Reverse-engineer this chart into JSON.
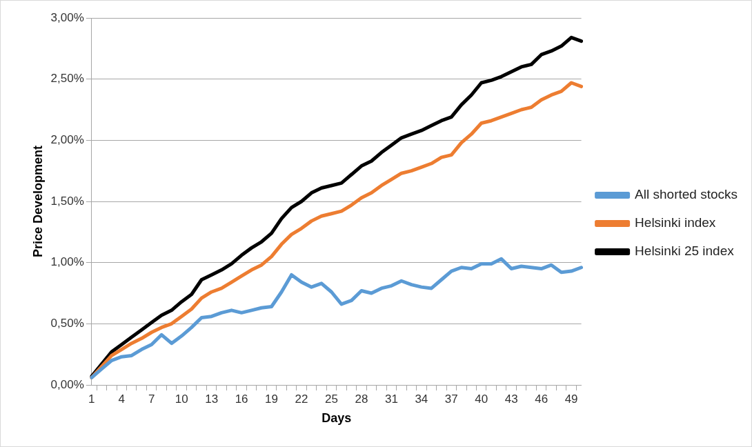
{
  "chart_data": {
    "type": "line",
    "xlabel": "Days",
    "ylabel": "Price Development",
    "categories": [
      "1",
      null,
      null,
      "4",
      null,
      null,
      "7",
      null,
      null,
      "10",
      null,
      null,
      "13",
      null,
      null,
      "16",
      null,
      null,
      "19",
      null,
      null,
      "22",
      null,
      null,
      "25",
      null,
      null,
      "28",
      null,
      null,
      "31",
      null,
      null,
      "34",
      null,
      null,
      "37",
      null,
      null,
      "40",
      null,
      null,
      "43",
      null,
      null,
      "46",
      null,
      null,
      "49",
      null
    ],
    "series": [
      {
        "name": "All shorted stocks",
        "color": "#5b9bd5",
        "values": [
          0.06,
          0.13,
          0.2,
          0.23,
          0.24,
          0.29,
          0.33,
          0.41,
          0.34,
          0.4,
          0.47,
          0.55,
          0.56,
          0.59,
          0.61,
          0.59,
          0.61,
          0.63,
          0.64,
          0.76,
          0.9,
          0.84,
          0.8,
          0.83,
          0.76,
          0.66,
          0.69,
          0.77,
          0.75,
          0.79,
          0.81,
          0.85,
          0.82,
          0.8,
          0.79,
          0.86,
          0.93,
          0.96,
          0.95,
          0.99,
          0.99,
          1.03,
          0.95,
          0.97,
          0.96,
          0.95,
          0.98,
          0.92,
          0.93,
          0.96
        ]
      },
      {
        "name": "Helsinki index",
        "color": "#ed7d31",
        "values": [
          0.06,
          0.15,
          0.24,
          0.29,
          0.34,
          0.38,
          0.43,
          0.47,
          0.5,
          0.56,
          0.62,
          0.71,
          0.76,
          0.79,
          0.84,
          0.89,
          0.94,
          0.98,
          1.05,
          1.15,
          1.23,
          1.28,
          1.34,
          1.38,
          1.4,
          1.42,
          1.47,
          1.53,
          1.57,
          1.63,
          1.68,
          1.73,
          1.75,
          1.78,
          1.81,
          1.86,
          1.88,
          1.98,
          2.05,
          2.14,
          2.16,
          2.19,
          2.22,
          2.25,
          2.27,
          2.33,
          2.37,
          2.4,
          2.47,
          2.44
        ]
      },
      {
        "name": "Helsinki 25 index",
        "color": "#000000",
        "values": [
          0.07,
          0.17,
          0.27,
          0.33,
          0.39,
          0.45,
          0.51,
          0.57,
          0.61,
          0.68,
          0.74,
          0.86,
          0.9,
          0.94,
          0.99,
          1.06,
          1.12,
          1.17,
          1.24,
          1.36,
          1.45,
          1.5,
          1.57,
          1.61,
          1.63,
          1.65,
          1.72,
          1.79,
          1.83,
          1.9,
          1.96,
          2.02,
          2.05,
          2.08,
          2.12,
          2.16,
          2.19,
          2.29,
          2.37,
          2.47,
          2.49,
          2.52,
          2.56,
          2.6,
          2.62,
          2.7,
          2.73,
          2.77,
          2.84,
          2.81
        ]
      }
    ],
    "ylim": [
      0,
      3
    ],
    "yticks": [
      {
        "value": 0,
        "label": "0,00%"
      },
      {
        "value": 0.5,
        "label": "0,50%"
      },
      {
        "value": 1,
        "label": "1,00%"
      },
      {
        "value": 1.5,
        "label": "1,50%"
      },
      {
        "value": 2,
        "label": "2,00%"
      },
      {
        "value": 2.5,
        "label": "2,50%"
      },
      {
        "value": 3,
        "label": "3,00%"
      }
    ],
    "grid": "y",
    "legend": "right",
    "marker": "none",
    "line_style": "solid"
  }
}
